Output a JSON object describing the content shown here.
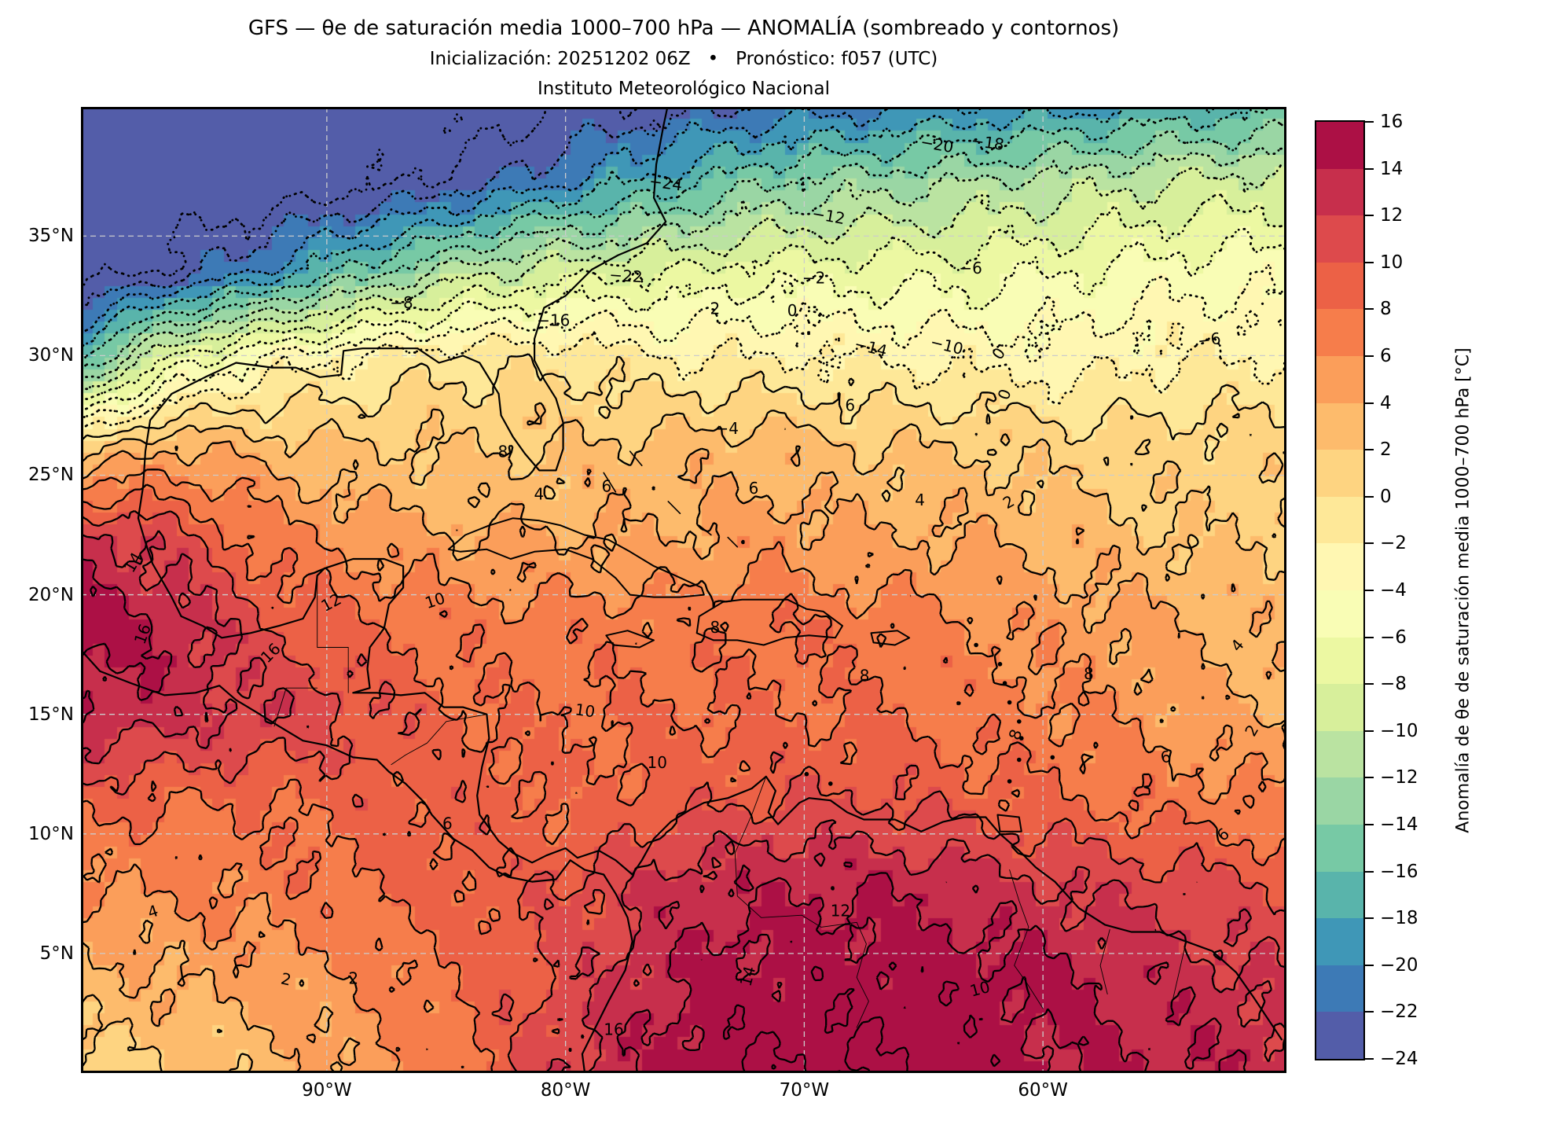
{
  "figure": {
    "title": "GFS — θe de saturación media 1000–700 hPa — ANOMALÍA (sombreado y contornos)",
    "subtitle": "Inicialización: 20251202 06Z   •   Pronóstico: f057 (UTC)",
    "institution": "Instituto Meteorológico Nacional"
  },
  "axes": {
    "x_ticks": [
      {
        "label": "90°W",
        "lon": -90
      },
      {
        "label": "80°W",
        "lon": -80
      },
      {
        "label": "70°W",
        "lon": -70
      },
      {
        "label": "60°W",
        "lon": -60
      }
    ],
    "y_ticks": [
      {
        "label": "35°N",
        "lat": 35
      },
      {
        "label": "30°N",
        "lat": 30
      },
      {
        "label": "25°N",
        "lat": 25
      },
      {
        "label": "20°N",
        "lat": 20
      },
      {
        "label": "15°N",
        "lat": 15
      },
      {
        "label": "10°N",
        "lat": 10
      },
      {
        "label": "5°N",
        "lat": 5
      }
    ]
  },
  "colorbar": {
    "label": "Anomalía de θe de saturación media 1000–700 hPa [°C]",
    "ticks": [
      16,
      14,
      12,
      10,
      8,
      6,
      4,
      2,
      0,
      -2,
      -4,
      -6,
      -8,
      -10,
      -12,
      -14,
      -16,
      -18,
      -20,
      -22,
      -24
    ]
  },
  "chart_data": {
    "type": "heatmap",
    "title": "GFS — θe de saturación media 1000–700 hPa — ANOMALÍA (sombreado y contornos)",
    "model": "GFS",
    "init_time": "20251202 06Z",
    "forecast_hour": "f057 (UTC)",
    "institution": "Instituto Meteorológico Nacional",
    "variable": "Anomalía de θe de saturación media 1000–700 hPa",
    "units": "°C",
    "extent": {
      "lon": [
        -100.3,
        -49.8
      ],
      "lat": [
        0,
        40.4
      ]
    },
    "levels": {
      "min": -24,
      "max": 16,
      "step": 2
    },
    "contour_style": {
      "negative": "dotted",
      "zero_and_positive": "solid"
    },
    "colormap": {
      "name": "Spectral_r (discreto, intervalos de 2 °C)",
      "bin_colors": [
        "#535da9",
        "#3d7ab6",
        "#3f97b7",
        "#59b4ab",
        "#77c9a5",
        "#9ad6a4",
        "#bae3a1",
        "#d7ef9b",
        "#ecf8a2",
        "#f9fdb5",
        "#fff7b2",
        "#fee898",
        "#fed481",
        "#fdbb6c",
        "#fb9e5a",
        "#f67d4b",
        "#ec6146",
        "#dd4a4c",
        "#c72f4c",
        "#ac1045"
      ]
    },
    "gridlines": {
      "lat": [
        5,
        10,
        15,
        20,
        25,
        30,
        35
      ],
      "lon": [
        -90,
        -80,
        -70,
        -60
      ]
    },
    "grid": {
      "lons": [
        -101,
        -96.75,
        -92.5,
        -88.25,
        -84,
        -79.75,
        -75.5,
        -71.25,
        -67,
        -62.75,
        -58.5,
        -54.25,
        -50
      ],
      "lats": [
        41,
        37.3,
        33.6,
        29.9,
        26.2,
        22.5,
        18.8,
        15.1,
        11.4,
        7.7,
        4,
        0.3
      ],
      "values": [
        [
          -26,
          -26,
          -26,
          -26,
          -26,
          -25,
          -24,
          -23,
          -22,
          -21,
          -20,
          -19,
          -18
        ],
        [
          -26,
          -26,
          -26,
          -25,
          -23,
          -20,
          -17,
          -14,
          -13,
          -12,
          -11,
          -10,
          -9
        ],
        [
          -26,
          -24,
          -20,
          -15,
          -11,
          -9,
          -8,
          -7,
          -7,
          -7,
          -6,
          -5,
          -5
        ],
        [
          -18,
          -8,
          -3.5,
          -1.3,
          -0.5,
          -0.5,
          -2,
          -2,
          -2,
          -3,
          -3,
          -2,
          -2
        ],
        [
          0,
          4,
          3,
          2,
          2,
          2,
          3,
          3,
          2,
          2,
          1,
          1,
          1
        ],
        [
          13,
          11,
          7,
          5,
          4,
          4,
          4,
          5,
          4,
          4,
          3,
          2,
          2
        ],
        [
          15,
          14,
          10,
          8,
          7,
          7,
          7,
          8,
          7,
          6,
          5,
          4,
          3
        ],
        [
          14,
          13,
          12,
          10,
          8,
          8,
          8,
          8,
          8,
          7,
          6,
          5,
          4
        ],
        [
          9,
          8,
          8,
          9,
          9,
          8,
          9,
          10,
          10,
          9,
          8,
          7,
          6
        ],
        [
          6,
          6,
          7,
          8,
          9,
          10,
          13,
          14,
          14,
          13,
          12,
          11,
          10
        ],
        [
          3,
          4,
          5,
          6,
          8,
          11,
          14,
          15,
          15,
          15,
          14,
          13,
          12
        ],
        [
          1,
          2,
          3,
          5,
          8,
          12,
          15,
          16,
          16,
          15,
          14,
          14,
          13
        ]
      ]
    },
    "contour_labels": [
      {
        "t": "−24",
        "x": 0.485,
        "y": 0.08,
        "r": 8
      },
      {
        "t": "−22",
        "x": 0.452,
        "y": 0.176,
        "r": 4
      },
      {
        "t": "−20",
        "x": 0.71,
        "y": 0.04,
        "r": 10
      },
      {
        "t": "−18",
        "x": 0.752,
        "y": 0.038,
        "r": 8
      },
      {
        "t": "−16",
        "x": 0.392,
        "y": 0.222,
        "r": 0
      },
      {
        "t": "−14",
        "x": 0.655,
        "y": 0.25,
        "r": 14
      },
      {
        "t": "−12",
        "x": 0.62,
        "y": 0.114,
        "r": 10
      },
      {
        "t": "−10",
        "x": 0.718,
        "y": 0.248,
        "r": 14
      },
      {
        "t": "−8",
        "x": 0.266,
        "y": 0.204,
        "r": 0
      },
      {
        "t": "−6",
        "x": 0.738,
        "y": 0.168,
        "r": 0
      },
      {
        "t": "−6",
        "x": 0.936,
        "y": 0.242,
        "r": -8
      },
      {
        "t": "−4",
        "x": 0.536,
        "y": 0.334,
        "r": 0
      },
      {
        "t": "−2",
        "x": 0.608,
        "y": 0.178,
        "r": 0
      },
      {
        "t": "0",
        "x": 0.59,
        "y": 0.212,
        "r": 0
      },
      {
        "t": "2",
        "x": 0.526,
        "y": 0.21,
        "r": 0
      },
      {
        "t": "0",
        "x": 0.762,
        "y": 0.256,
        "r": -55
      },
      {
        "t": "0",
        "x": 0.767,
        "y": 0.298,
        "r": -70
      },
      {
        "t": "2",
        "x": 0.77,
        "y": 0.41,
        "r": -30
      },
      {
        "t": "4",
        "x": 0.696,
        "y": 0.408,
        "r": 0
      },
      {
        "t": "4",
        "x": 0.38,
        "y": 0.402,
        "r": 0
      },
      {
        "t": "6",
        "x": 0.436,
        "y": 0.394,
        "r": 0
      },
      {
        "t": "6",
        "x": 0.558,
        "y": 0.396,
        "r": 0
      },
      {
        "t": "6",
        "x": 0.638,
        "y": 0.31,
        "r": 0
      },
      {
        "t": "8",
        "x": 0.35,
        "y": 0.358,
        "r": 0
      },
      {
        "t": "8",
        "x": 0.526,
        "y": 0.54,
        "r": 0
      },
      {
        "t": "8",
        "x": 0.65,
        "y": 0.59,
        "r": 0
      },
      {
        "t": "10",
        "x": 0.294,
        "y": 0.512,
        "r": -18
      },
      {
        "t": "10",
        "x": 0.478,
        "y": 0.68,
        "r": 0
      },
      {
        "t": "10",
        "x": 0.418,
        "y": 0.626,
        "r": 8
      },
      {
        "t": "12",
        "x": 0.208,
        "y": 0.514,
        "r": -28
      },
      {
        "t": "12",
        "x": 0.63,
        "y": 0.833,
        "r": 0
      },
      {
        "t": "14",
        "x": 0.044,
        "y": 0.472,
        "r": -60
      },
      {
        "t": "16",
        "x": 0.052,
        "y": 0.546,
        "r": -70
      },
      {
        "t": "16",
        "x": 0.158,
        "y": 0.566,
        "r": -45
      },
      {
        "t": "16",
        "x": 0.442,
        "y": 0.956,
        "r": 0
      },
      {
        "t": "14",
        "x": 0.554,
        "y": 0.9,
        "r": -75
      },
      {
        "t": "10",
        "x": 0.746,
        "y": 0.914,
        "r": -15
      },
      {
        "t": "8",
        "x": 0.776,
        "y": 0.65,
        "r": -70
      },
      {
        "t": "8",
        "x": 0.836,
        "y": 0.588,
        "r": 0
      },
      {
        "t": "6",
        "x": 0.9,
        "y": 0.674,
        "r": -12
      },
      {
        "t": "6",
        "x": 0.948,
        "y": 0.754,
        "r": -40
      },
      {
        "t": "6",
        "x": 0.304,
        "y": 0.743,
        "r": 0
      },
      {
        "t": "4",
        "x": 0.06,
        "y": 0.834,
        "r": -18
      },
      {
        "t": "4",
        "x": 0.96,
        "y": 0.558,
        "r": -50
      },
      {
        "t": "2",
        "x": 0.17,
        "y": 0.904,
        "r": 12
      },
      {
        "t": "2",
        "x": 0.226,
        "y": 0.903,
        "r": 0
      },
      {
        "t": "2",
        "x": 0.972,
        "y": 0.646,
        "r": -60
      }
    ]
  }
}
